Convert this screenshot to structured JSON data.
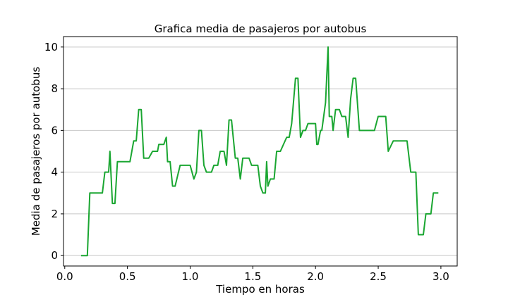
{
  "chart_data": {
    "type": "line",
    "title": "Grafica media de pasajeros por autobus",
    "xlabel": "Tiempo en horas",
    "ylabel": "Media de pasajeros por autobus",
    "xlim": [
      -0.01,
      3.13
    ],
    "ylim": [
      -0.5,
      10.5
    ],
    "xticks": [
      "0.0",
      "0.5",
      "1.0",
      "1.5",
      "2.0",
      "2.5",
      "3.0"
    ],
    "yticks": [
      "0",
      "2",
      "4",
      "6",
      "8",
      "10"
    ],
    "grid": "horizontal",
    "legend": "none",
    "series": [
      {
        "color": "#1aa631",
        "x": [
          0.13,
          0.18,
          0.2,
          0.3,
          0.32,
          0.35,
          0.36,
          0.38,
          0.4,
          0.42,
          0.52,
          0.55,
          0.57,
          0.59,
          0.61,
          0.63,
          0.67,
          0.7,
          0.74,
          0.75,
          0.79,
          0.81,
          0.82,
          0.84,
          0.86,
          0.88,
          0.92,
          0.94,
          1.0,
          1.03,
          1.05,
          1.07,
          1.09,
          1.11,
          1.13,
          1.17,
          1.19,
          1.22,
          1.24,
          1.27,
          1.29,
          1.31,
          1.33,
          1.36,
          1.38,
          1.4,
          1.42,
          1.47,
          1.49,
          1.52,
          1.54,
          1.56,
          1.58,
          1.6,
          1.61,
          1.62,
          1.64,
          1.67,
          1.69,
          1.72,
          1.77,
          1.79,
          1.81,
          1.84,
          1.86,
          1.88,
          1.9,
          1.92,
          1.94,
          1.98,
          2.0,
          2.01,
          2.02,
          2.04,
          2.05,
          2.08,
          2.1,
          2.11,
          2.13,
          2.14,
          2.16,
          2.19,
          2.21,
          2.24,
          2.26,
          2.28,
          2.3,
          2.32,
          2.35,
          2.38,
          2.41,
          2.44,
          2.47,
          2.5,
          2.54,
          2.56,
          2.58,
          2.62,
          2.66,
          2.7,
          2.72,
          2.73,
          2.76,
          2.78,
          2.8,
          2.82,
          2.84,
          2.86,
          2.88,
          2.9,
          2.92,
          2.94,
          2.96,
          2.98
        ],
        "y": [
          0,
          0,
          3,
          3,
          4,
          4,
          5,
          2.5,
          2.5,
          4.5,
          4.5,
          5.5,
          5.5,
          7,
          7,
          4.67,
          4.67,
          5,
          5,
          5.33,
          5.33,
          5.67,
          4.5,
          4.5,
          3.33,
          3.33,
          4.33,
          4.33,
          4.33,
          3.67,
          4,
          6,
          6,
          4.33,
          4,
          4,
          4.33,
          4.33,
          5,
          5,
          4.33,
          6.5,
          6.5,
          4.67,
          4.67,
          3.67,
          4.67,
          4.67,
          4.33,
          4.33,
          4.33,
          3.33,
          3,
          3,
          4.5,
          3.33,
          3.67,
          3.67,
          5,
          5,
          5.67,
          5.67,
          6.33,
          8.5,
          8.5,
          5.67,
          6,
          6,
          6.33,
          6.33,
          6.33,
          5.33,
          5.33,
          6,
          6,
          7.33,
          10,
          6.67,
          6.67,
          6,
          7,
          7,
          6.67,
          6.67,
          5.67,
          7.5,
          8.5,
          8.5,
          6,
          6,
          6,
          6,
          6,
          6.67,
          6.67,
          6.67,
          5,
          5.5,
          5.5,
          5.5,
          5.5,
          5.5,
          4,
          4,
          4,
          1,
          1,
          1,
          2,
          2,
          2,
          3,
          3,
          3
        ]
      }
    ]
  }
}
